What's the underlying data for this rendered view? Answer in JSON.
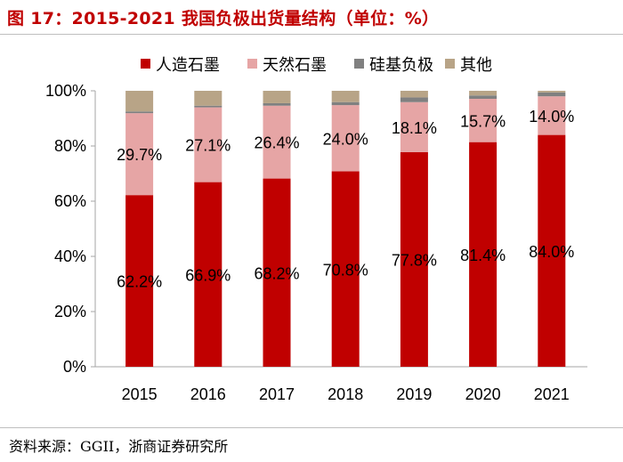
{
  "figure": {
    "title": "图 17：2015-2021 我国负极出货量结构（单位：%）",
    "source": "资料来源：GGII，浙商证券研究所"
  },
  "chart_data": {
    "type": "bar",
    "stacked": true,
    "categories": [
      "2015",
      "2016",
      "2017",
      "2018",
      "2019",
      "2020",
      "2021"
    ],
    "series": [
      {
        "name": "人造石墨",
        "color": "#c00000",
        "values": [
          62.2,
          66.9,
          68.2,
          70.8,
          77.8,
          81.4,
          84.0
        ],
        "labels": [
          "62.2%",
          "66.9%",
          "68.2%",
          "70.8%",
          "77.8%",
          "81.4%",
          "84.0%"
        ]
      },
      {
        "name": "天然石墨",
        "color": "#e6a5a5",
        "values": [
          29.7,
          27.1,
          26.4,
          24.0,
          18.1,
          15.7,
          14.0
        ],
        "labels": [
          "29.7%",
          "27.1%",
          "26.4%",
          "24.0%",
          "18.1%",
          "15.7%",
          "14.0%"
        ]
      },
      {
        "name": "硅基负极",
        "color": "#808080",
        "values": [
          0.6,
          0.6,
          0.9,
          1.1,
          1.7,
          1.2,
          1.4
        ]
      },
      {
        "name": "其他",
        "color": "#b8a487",
        "values": [
          7.5,
          5.4,
          4.5,
          4.1,
          2.4,
          1.7,
          0.6
        ]
      }
    ],
    "yticks": [
      "0%",
      "20%",
      "40%",
      "60%",
      "80%",
      "100%"
    ],
    "ylim": [
      0,
      100
    ],
    "legend_position": "top-center",
    "grid": false
  }
}
